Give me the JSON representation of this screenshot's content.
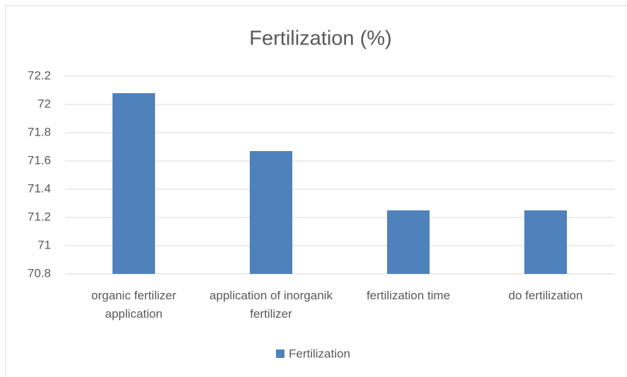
{
  "chart_data": {
    "type": "bar",
    "title": "Fertilization  (%)",
    "categories": [
      "organic fertilizer application",
      "application of inorganik fertilizer",
      "fertilization time",
      "do fertilization"
    ],
    "series": [
      {
        "name": "Fertilization",
        "color": "#4f81bd",
        "values": [
          72.08,
          71.67,
          71.25,
          71.25
        ]
      }
    ],
    "ylim": [
      70.8,
      72.2
    ],
    "yticks": [
      70.8,
      71,
      71.2,
      71.4,
      71.6,
      71.8,
      72,
      72.2
    ],
    "grid": true,
    "legend": "bottom"
  }
}
